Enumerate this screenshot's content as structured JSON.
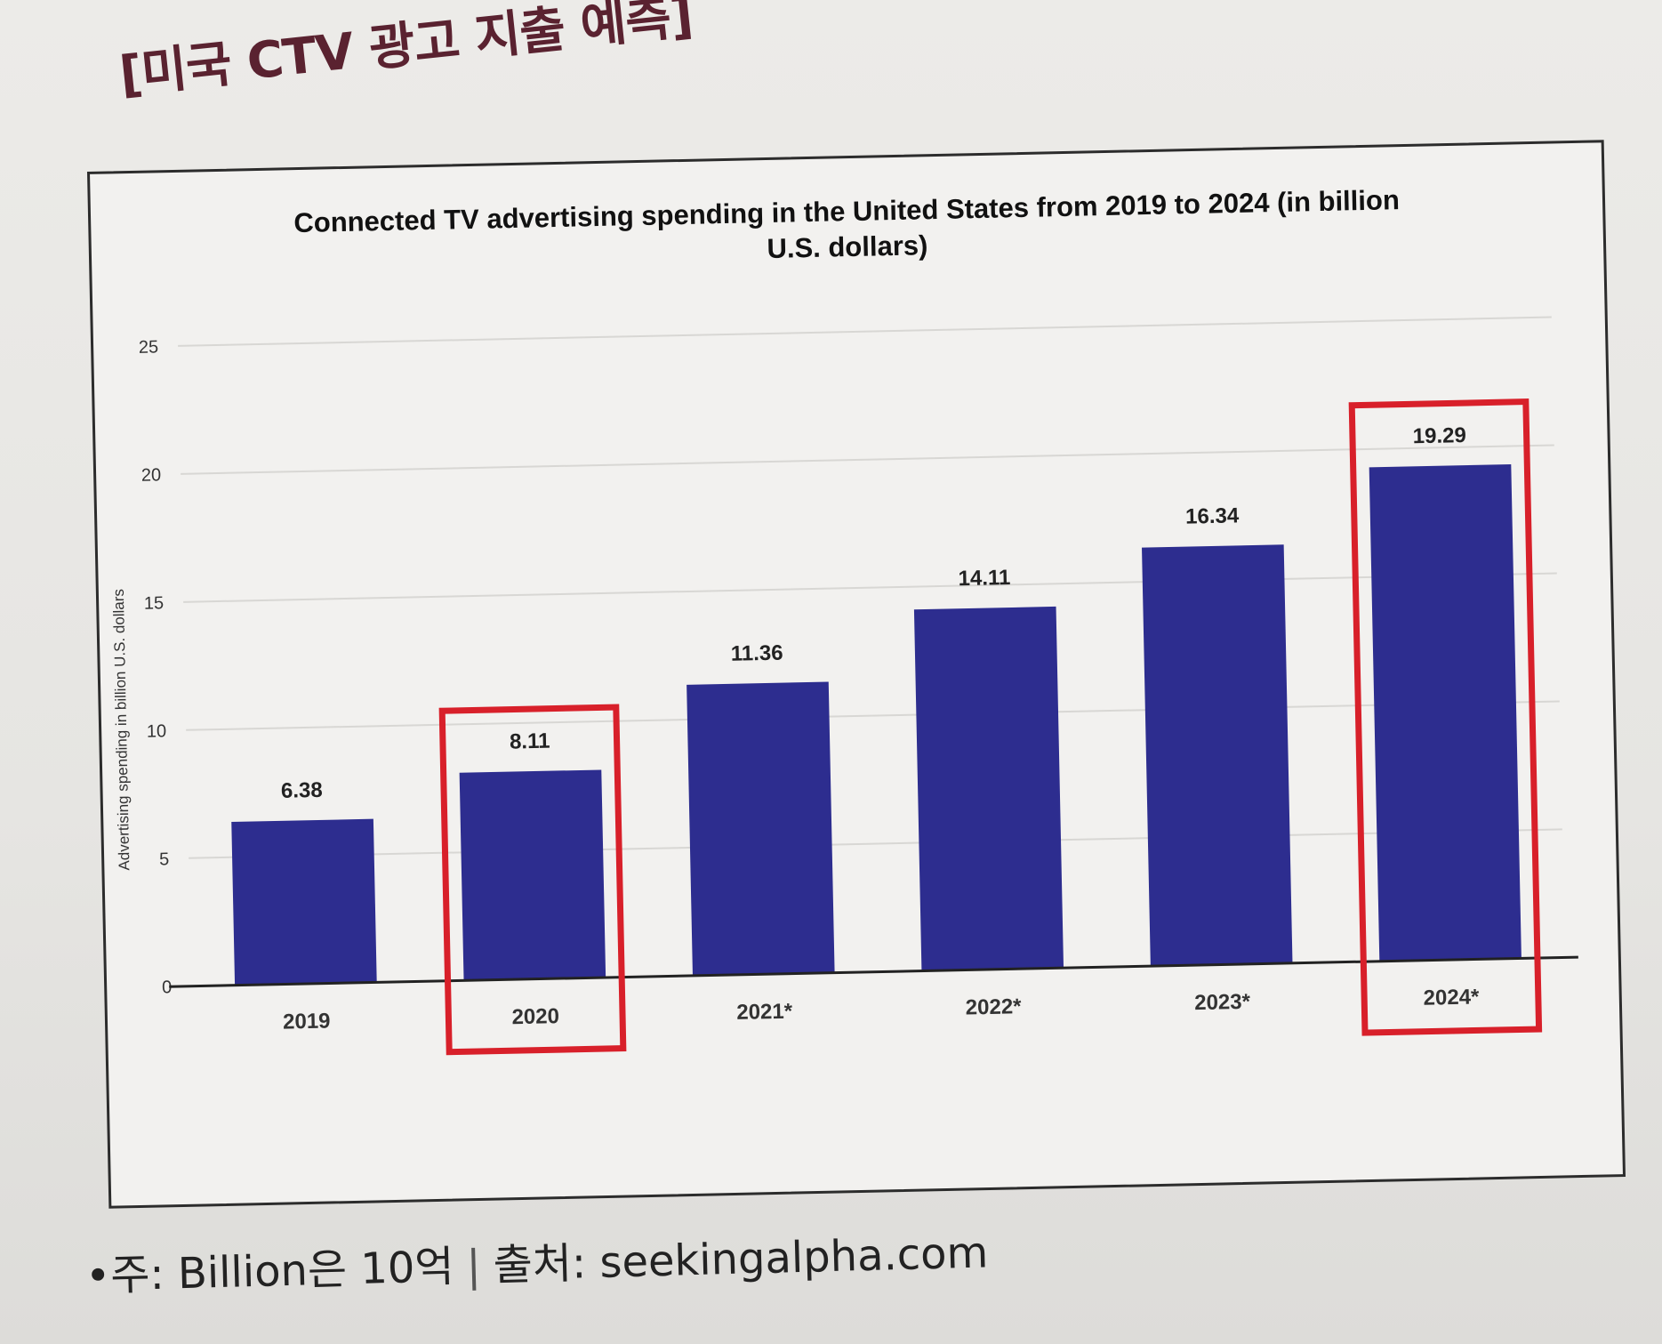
{
  "heading": "[미국 CTV 광고 지출 예측]",
  "footnote": {
    "note": "•주: Billion은 10억",
    "source": "출처: seekingalpha.com"
  },
  "highlight_color": "#d8202a",
  "bar_color": "#2d2d8f",
  "chart_data": {
    "type": "bar",
    "title": "Connected TV advertising spending in the United States from 2019 to 2024 (in billion U.S. dollars)",
    "title_lines": [
      "Connected TV advertising spending in the United States from 2019 to 2024 (in billion",
      "U.S. dollars)"
    ],
    "xlabel": "",
    "ylabel": "Advertising spending in billion U.S. dollars",
    "categories": [
      "2019",
      "2020",
      "2021*",
      "2022*",
      "2023*",
      "2024*"
    ],
    "values": [
      6.38,
      8.11,
      11.36,
      14.11,
      16.34,
      19.29
    ],
    "value_labels": [
      "6.38",
      "8.11",
      "11.36",
      "14.11",
      "16.34",
      "19.29"
    ],
    "ylim": [
      0,
      25
    ],
    "yticks": [
      "0",
      "5",
      "10",
      "15",
      "20",
      "25"
    ],
    "grid": true,
    "highlighted_categories": [
      "2020",
      "2024*"
    ]
  }
}
